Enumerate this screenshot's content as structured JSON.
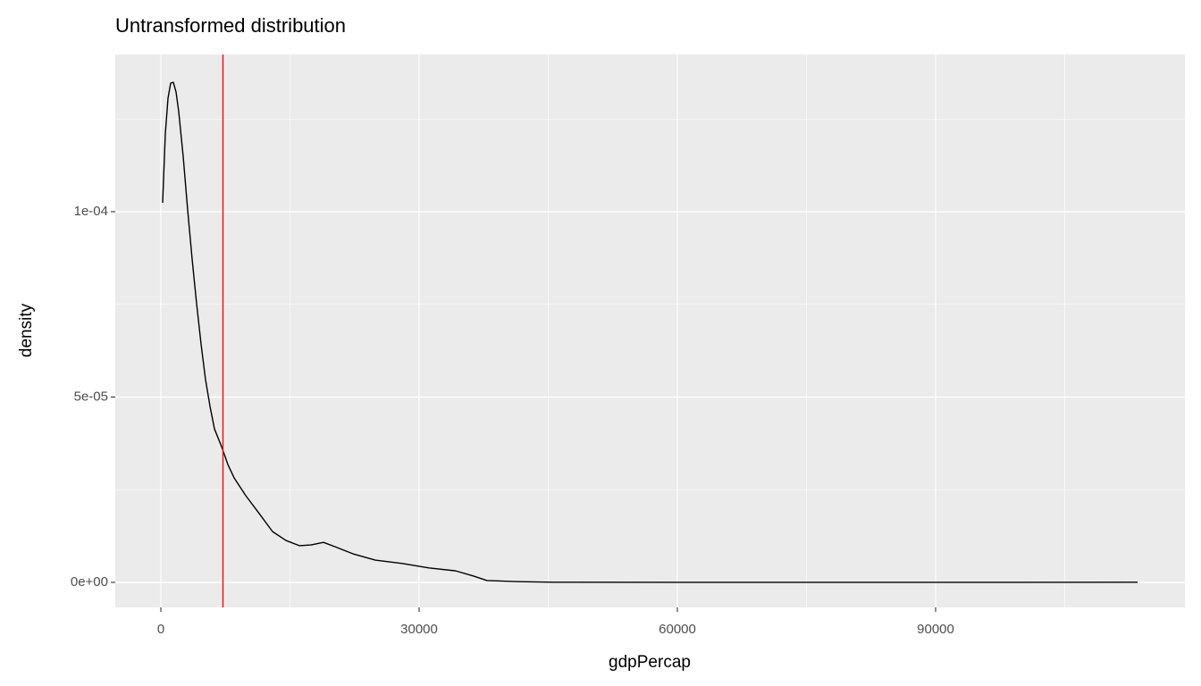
{
  "chart_data": {
    "type": "line",
    "title": "Untransformed distribution",
    "x_label": "gdpPercap",
    "y_label": "density",
    "color": "#000000",
    "x": [
      208,
      519,
      830,
      1142,
      1453,
      1765,
      2076,
      2595,
      3114,
      3633,
      4152,
      4671,
      5190,
      5710,
      6229,
      7059,
      7786,
      8512,
      9862,
      11419,
      12976,
      14533,
      16090,
      17440,
      18893,
      20243,
      22319,
      24914,
      28029,
      31143,
      34257,
      36333,
      37890,
      41523,
      45676,
      60000,
      80000,
      100000,
      113466
    ],
    "values": [
      0.0001024,
      0.000121,
      0.0001306,
      0.0001347,
      0.0001349,
      0.0001323,
      0.000127,
      0.0001149,
      0.0001005,
      8.72e-05,
      7.52e-05,
      6.43e-05,
      5.47e-05,
      4.75e-05,
      4.14e-05,
      3.66e-05,
      3.18e-05,
      2.82e-05,
      2.34e-05,
      1.86e-05,
      1.37e-05,
      1.13e-05,
      9.9e-06,
      1.01e-05,
      1.08e-05,
      9.6e-06,
      7.7e-06,
      6e-06,
      5.1e-06,
      3.9e-06,
      3.1e-06,
      1.7e-06,
      5e-07,
      2e-07,
      5e-08,
      2e-08,
      2e-08,
      2e-08,
      5e-08
    ],
    "vline": {
      "value": 7215,
      "color": "#e41a1c"
    },
    "xlim": [
      -5294,
      118960
    ],
    "ylim": [
      -6.75e-06,
      0.00014241
    ],
    "xticks": [
      0,
      30000,
      60000,
      90000
    ],
    "yticks": [
      {
        "value": 0,
        "label": "0e+00"
      },
      {
        "value": 5e-05,
        "label": "5e-05"
      },
      {
        "value": 0.0001,
        "label": "1e-04"
      }
    ],
    "xminor": [
      15000,
      45000,
      75000,
      105000
    ],
    "yminor": [
      2.5e-05,
      7.5e-05,
      0.000125
    ],
    "grid": true
  }
}
